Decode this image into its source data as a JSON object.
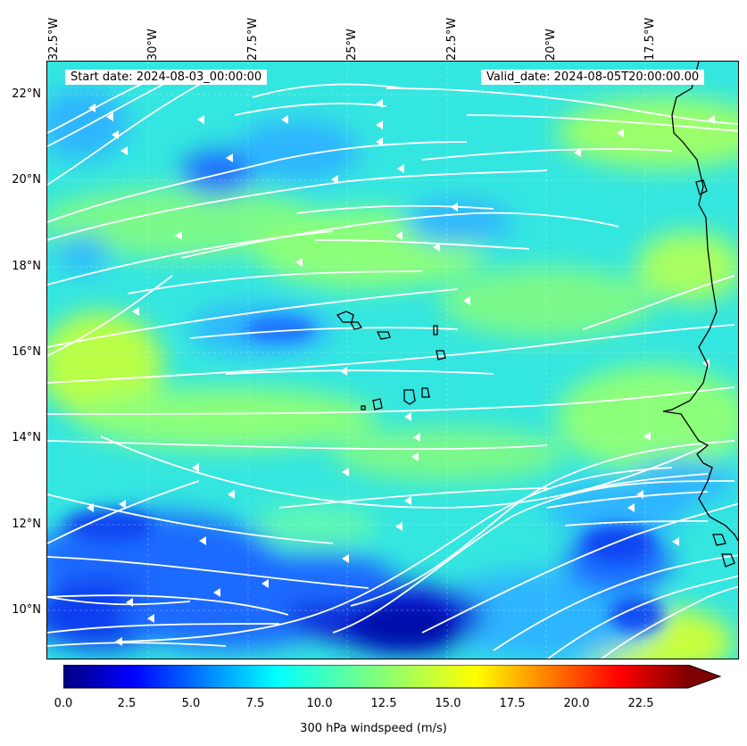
{
  "lon_labels": [
    "32.5°W",
    "30°W",
    "27.5°W",
    "25°W",
    "22.5°W",
    "20°W",
    "17.5°W"
  ],
  "lat_labels": [
    "22°N",
    "20°N",
    "18°N",
    "16°N",
    "14°N",
    "12°N",
    "10°N"
  ],
  "start_date": "Start date: 2024-08-03_00:00:00",
  "valid_date": "Valid_date: 2024-08-05T20:00:00.00",
  "colorbar": {
    "ticks": [
      "0.0",
      "2.5",
      "5.0",
      "7.5",
      "10.0",
      "12.5",
      "15.0",
      "17.5",
      "20.0",
      "22.5"
    ],
    "label": "300 hPa windspeed (m/s)",
    "colors": [
      "#00007f",
      "#0000ff",
      "#007fff",
      "#00ffff",
      "#7fff7f",
      "#ffff00",
      "#ff7f00",
      "#ff0000",
      "#7f0000"
    ]
  },
  "field_colors": {
    "dark_blue": "#0a1fd6",
    "blue": "#1e6bff",
    "light_blue": "#2fb5ff",
    "cyan": "#22f0f0",
    "aqua_green": "#4ef5c0",
    "green": "#8cff7a",
    "yellow_green": "#c8ff3c"
  }
}
